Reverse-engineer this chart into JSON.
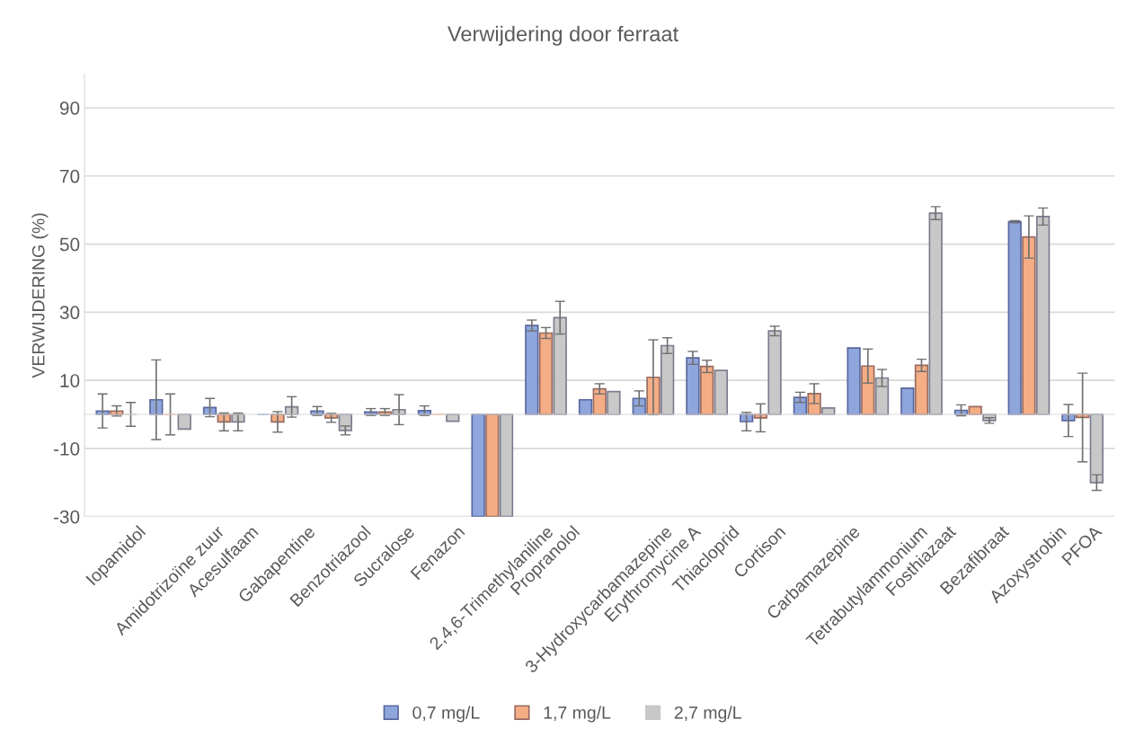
{
  "chart_data": {
    "type": "bar",
    "title": "Verwijdering door ferraat",
    "ylabel": "VERWIJDERING (%)",
    "categories": [
      "Iopamidol",
      "Amidotrizoïne zuur",
      "Acesulfaam",
      "Gabapentine",
      "Benzotriazool",
      "Sucralose",
      "Fenazon",
      "2,4,6-Trimethylaniline",
      "Propranolol",
      "3-Hydroxycarbamazepine",
      "Erythromycine A",
      "Thiacloprid",
      "Cortison",
      "Carbamazepine",
      "Tetrabutylammonium",
      "Fosthiazaat",
      "Bezafibraat",
      "Azoxystrobin",
      "PFOA"
    ],
    "series": [
      {
        "name": "0,7 mg/L",
        "color": "#8fa6dc",
        "values": [
          1,
          4.3,
          2,
          0,
          1,
          0.7,
          1.1,
          -30,
          26.1,
          4.3,
          4.7,
          16.6,
          -2.1,
          5,
          19.5,
          7.7,
          1.2,
          56.6,
          -1.8
        ],
        "errors": [
          5,
          11.7,
          2.7,
          null,
          1.3,
          1,
          1.4,
          null,
          1.6,
          null,
          2.2,
          1.9,
          2.7,
          1.5,
          null,
          null,
          1.6,
          0.3,
          4.7
        ]
      },
      {
        "name": "1,7 mg/L",
        "color": "#f4ad85",
        "values": [
          1,
          0,
          -2.2,
          -2.2,
          -1,
          0.7,
          0,
          -30,
          23.9,
          7.5,
          10.9,
          14.1,
          -1,
          6.1,
          14.2,
          14.4,
          2.3,
          52.1,
          -0.9
        ],
        "errors": [
          1.5,
          6,
          2.6,
          3,
          1.3,
          1,
          null,
          null,
          1.6,
          1.5,
          11,
          1.8,
          4.1,
          2.9,
          5,
          1.8,
          null,
          6.2,
          13
        ]
      },
      {
        "name": "2,7 mg/L",
        "color": "#c8c8c8",
        "values": [
          0,
          -4.3,
          -2.2,
          2.2,
          -4.7,
          1.4,
          -2,
          -30,
          28.4,
          6.7,
          20.2,
          12.9,
          24.5,
          1.9,
          10.7,
          59.1,
          -1.8,
          58.1,
          -20
        ],
        "errors": [
          3.5,
          null,
          2.6,
          3,
          1.3,
          4.4,
          null,
          null,
          4.8,
          null,
          2.3,
          null,
          1.4,
          null,
          2.5,
          1.9,
          0.8,
          2.5,
          2.3
        ]
      }
    ],
    "ylim": [
      -30,
      100
    ],
    "yticks": [
      -30,
      -10,
      10,
      30,
      50,
      70,
      90
    ],
    "grid": "y",
    "legend": "bottom"
  }
}
